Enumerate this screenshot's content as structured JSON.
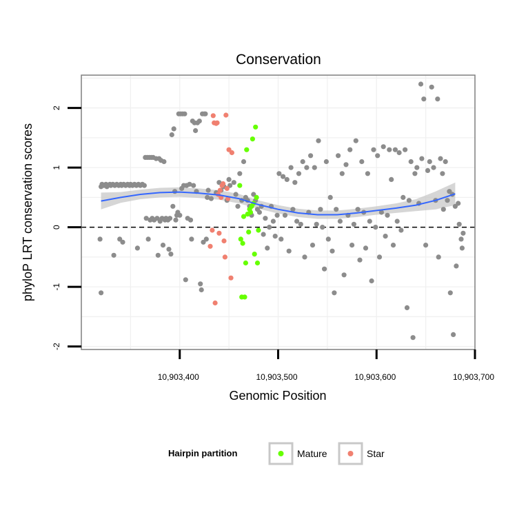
{
  "chart_data": {
    "type": "scatter",
    "title": "Conservation",
    "xlabel": "Genomic Position",
    "ylabel": "phyloP LRT conservation scores",
    "xlim": [
      10903300,
      10903700
    ],
    "ylim": [
      -2.05,
      2.55
    ],
    "x_ticks": [
      10903400,
      10903500,
      10903600,
      10903700
    ],
    "x_tick_labels": [
      "10,903,400",
      "10,903,500",
      "10,903,600",
      "10,903,700"
    ],
    "y_ticks": [
      -2,
      -1,
      0,
      1,
      2
    ],
    "y_tick_labels": [
      "-2",
      "-1",
      "0",
      "1",
      "2"
    ],
    "grid": true,
    "reference_line": {
      "y": 0,
      "style": "dashed"
    },
    "legend": {
      "title": "Hairpin partition",
      "position": "bottom",
      "entries": [
        {
          "label": "Mature",
          "color": "#66ff00"
        },
        {
          "label": "Star",
          "color": "#f08070"
        }
      ]
    },
    "colors": {
      "other": "#8c8c8c",
      "mature": "#66ff00",
      "star": "#f08070",
      "smooth": "#3366ff",
      "band": "#c8c8c8"
    },
    "series": [
      {
        "group": "other",
        "points": [
          [
            10903319,
            -0.2
          ],
          [
            10903320,
            -1.1
          ],
          [
            10903320,
            0.68
          ],
          [
            10903321,
            0.72
          ],
          [
            10903323,
            0.7
          ],
          [
            10903325,
            0.72
          ],
          [
            10903326,
            0.68
          ],
          [
            10903327,
            0.7
          ],
          [
            10903329,
            0.72
          ],
          [
            10903330,
            0.7
          ],
          [
            10903332,
            0.72
          ],
          [
            10903333,
            -0.47
          ],
          [
            10903334,
            0.7
          ],
          [
            10903336,
            0.72
          ],
          [
            10903338,
            0.7
          ],
          [
            10903339,
            -0.2
          ],
          [
            10903340,
            0.72
          ],
          [
            10903341,
            0.7
          ],
          [
            10903342,
            -0.25
          ],
          [
            10903343,
            0.72
          ],
          [
            10903345,
            0.7
          ],
          [
            10903347,
            0.72
          ],
          [
            10903349,
            0.7
          ],
          [
            10903350,
            0.72
          ],
          [
            10903352,
            0.7
          ],
          [
            10903354,
            0.72
          ],
          [
            10903356,
            0.7
          ],
          [
            10903357,
            -0.35
          ],
          [
            10903358,
            0.72
          ],
          [
            10903360,
            0.7
          ],
          [
            10903362,
            0.72
          ],
          [
            10903364,
            0.7
          ],
          [
            10903365,
            1.17
          ],
          [
            10903366,
            0.15
          ],
          [
            10903367,
            1.17
          ],
          [
            10903368,
            -0.2
          ],
          [
            10903369,
            1.17
          ],
          [
            10903370,
            0.12
          ],
          [
            10903371,
            1.17
          ],
          [
            10903372,
            0.15
          ],
          [
            10903373,
            1.17
          ],
          [
            10903374,
            0.12
          ],
          [
            10903376,
            1.15
          ],
          [
            10903377,
            0.15
          ],
          [
            10903378,
            -0.47
          ],
          [
            10903379,
            1.15
          ],
          [
            10903380,
            0.1
          ],
          [
            10903381,
            1.12
          ],
          [
            10903382,
            0.15
          ],
          [
            10903383,
            -0.3
          ],
          [
            10903384,
            1.1
          ],
          [
            10903385,
            0.12
          ],
          [
            10903386,
            0.15
          ],
          [
            10903388,
            0.12
          ],
          [
            10903389,
            -0.37
          ],
          [
            10903390,
            0.15
          ],
          [
            10903391,
            -0.45
          ],
          [
            10903392,
            1.55
          ],
          [
            10903393,
            0.35
          ],
          [
            10903394,
            1.65
          ],
          [
            10903395,
            0.6
          ],
          [
            10903396,
            0.12
          ],
          [
            10903397,
            0.2
          ],
          [
            10903398,
            0.25
          ],
          [
            10903399,
            1.9
          ],
          [
            10903400,
            0.2
          ],
          [
            10903401,
            1.9
          ],
          [
            10903402,
            0.65
          ],
          [
            10903403,
            1.9
          ],
          [
            10903404,
            0.7
          ],
          [
            10903405,
            1.9
          ],
          [
            10903406,
            -0.88
          ],
          [
            10903407,
            0.7
          ],
          [
            10903408,
            0.15
          ],
          [
            10903410,
            0.72
          ],
          [
            10903411,
            0.12
          ],
          [
            10903412,
            -0.2
          ],
          [
            10903413,
            1.78
          ],
          [
            10903414,
            0.7
          ],
          [
            10903415,
            1.75
          ],
          [
            10903416,
            1.62
          ],
          [
            10903417,
            0.6
          ],
          [
            10903418,
            1.75
          ],
          [
            10903420,
            1.78
          ],
          [
            10903421,
            -0.95
          ],
          [
            10903422,
            -1.05
          ],
          [
            10903423,
            1.9
          ],
          [
            10903424,
            -0.25
          ],
          [
            10903425,
            1.9
          ],
          [
            10903426,
            1.9
          ],
          [
            10903427,
            -0.2
          ],
          [
            10903428,
            0.5
          ],
          [
            10903429,
            0.62
          ],
          [
            10903432,
            0.48
          ],
          [
            10903437,
            0.58
          ],
          [
            10903440,
            0.75
          ],
          [
            10903442,
            0.62
          ],
          [
            10903445,
            0.68
          ],
          [
            10903448,
            0.45
          ],
          [
            10903450,
            0.8
          ],
          [
            10903451,
            0.7
          ],
          [
            10903455,
            0.75
          ],
          [
            10903457,
            0.55
          ],
          [
            10903459,
            0.35
          ],
          [
            10903461,
            0.9
          ],
          [
            10903463,
            0.45
          ],
          [
            10903465,
            1.1
          ],
          [
            10903467,
            0.5
          ],
          [
            10903469,
            0.45
          ],
          [
            10903471,
            0.35
          ],
          [
            10903473,
            0.2
          ],
          [
            10903475,
            0.55
          ],
          [
            10903477,
            0.45
          ],
          [
            10903479,
            0.3
          ],
          [
            10903481,
            0.25
          ],
          [
            10903483,
            0.35
          ],
          [
            10903485,
            -0.12
          ],
          [
            10903487,
            0.15
          ],
          [
            10903489,
            -0.35
          ],
          [
            10903491,
            0.0
          ],
          [
            10903493,
            0.35
          ],
          [
            10903495,
            0.1
          ],
          [
            10903497,
            -0.15
          ],
          [
            10903499,
            0.2
          ],
          [
            10903501,
            0.9
          ],
          [
            10903503,
            -0.2
          ],
          [
            10903505,
            0.85
          ],
          [
            10903507,
            0.2
          ],
          [
            10903509,
            0.8
          ],
          [
            10903511,
            -0.4
          ],
          [
            10903513,
            1.0
          ],
          [
            10903515,
            0.3
          ],
          [
            10903517,
            0.75
          ],
          [
            10903519,
            0.1
          ],
          [
            10903521,
            0.9
          ],
          [
            10903523,
            0.05
          ],
          [
            10903525,
            1.1
          ],
          [
            10903527,
            -0.5
          ],
          [
            10903529,
            1.0
          ],
          [
            10903531,
            0.25
          ],
          [
            10903533,
            1.2
          ],
          [
            10903535,
            -0.3
          ],
          [
            10903537,
            1.0
          ],
          [
            10903539,
            0.05
          ],
          [
            10903541,
            1.45
          ],
          [
            10903543,
            0.3
          ],
          [
            10903545,
            0.0
          ],
          [
            10903547,
            -0.7
          ],
          [
            10903549,
            1.1
          ],
          [
            10903551,
            -0.2
          ],
          [
            10903553,
            0.5
          ],
          [
            10903555,
            -0.4
          ],
          [
            10903557,
            -1.1
          ],
          [
            10903559,
            0.3
          ],
          [
            10903561,
            1.2
          ],
          [
            10903563,
            0.1
          ],
          [
            10903565,
            0.9
          ],
          [
            10903567,
            -0.8
          ],
          [
            10903569,
            1.05
          ],
          [
            10903571,
            0.2
          ],
          [
            10903573,
            1.3
          ],
          [
            10903575,
            -0.3
          ],
          [
            10903577,
            0.05
          ],
          [
            10903579,
            1.45
          ],
          [
            10903581,
            0.3
          ],
          [
            10903583,
            -0.55
          ],
          [
            10903585,
            1.1
          ],
          [
            10903587,
            0.25
          ],
          [
            10903589,
            -0.35
          ],
          [
            10903591,
            0.9
          ],
          [
            10903593,
            0.1
          ],
          [
            10903595,
            -0.9
          ],
          [
            10903597,
            1.3
          ],
          [
            10903599,
            0.0
          ],
          [
            10903601,
            1.2
          ],
          [
            10903603,
            -0.5
          ],
          [
            10903605,
            0.25
          ],
          [
            10903607,
            1.35
          ],
          [
            10903609,
            -0.15
          ],
          [
            10903611,
            0.2
          ],
          [
            10903613,
            1.3
          ],
          [
            10903615,
            0.8
          ],
          [
            10903617,
            -0.3
          ],
          [
            10903619,
            1.3
          ],
          [
            10903621,
            0.1
          ],
          [
            10903623,
            1.25
          ],
          [
            10903625,
            -0.05
          ],
          [
            10903627,
            0.5
          ],
          [
            10903629,
            1.3
          ],
          [
            10903631,
            -1.35
          ],
          [
            10903633,
            0.45
          ],
          [
            10903635,
            1.1
          ],
          [
            10903637,
            -1.85
          ],
          [
            10903639,
            0.9
          ],
          [
            10903641,
            1.0
          ],
          [
            10903643,
            0.4
          ],
          [
            10903645,
            2.4
          ],
          [
            10903646,
            1.15
          ],
          [
            10903648,
            2.15
          ],
          [
            10903650,
            -0.3
          ],
          [
            10903652,
            0.95
          ],
          [
            10903654,
            1.1
          ],
          [
            10903656,
            2.35
          ],
          [
            10903658,
            1.0
          ],
          [
            10903660,
            0.45
          ],
          [
            10903662,
            2.15
          ],
          [
            10903663,
            -0.5
          ],
          [
            10903665,
            1.15
          ],
          [
            10903667,
            0.9
          ],
          [
            10903668,
            0.3
          ],
          [
            10903670,
            1.1
          ],
          [
            10903672,
            0.45
          ],
          [
            10903674,
            0.6
          ],
          [
            10903675,
            -1.1
          ],
          [
            10903677,
            0.55
          ],
          [
            10903678,
            -1.8
          ],
          [
            10903680,
            0.35
          ],
          [
            10903681,
            -0.65
          ],
          [
            10903683,
            0.4
          ],
          [
            10903684,
            0.05
          ],
          [
            10903686,
            -0.2
          ],
          [
            10903687,
            -0.35
          ],
          [
            10903688,
            -0.1
          ]
        ]
      },
      {
        "group": "mature",
        "points": [
          [
            10903461,
            0.7
          ],
          [
            10903462,
            -0.2
          ],
          [
            10903463,
            -1.17
          ],
          [
            10903464,
            -0.27
          ],
          [
            10903465,
            0.18
          ],
          [
            10903466,
            -1.17
          ],
          [
            10903467,
            -0.6
          ],
          [
            10903468,
            1.3
          ],
          [
            10903469,
            0.22
          ],
          [
            10903470,
            -0.08
          ],
          [
            10903471,
            0.3
          ],
          [
            10903472,
            0.25
          ],
          [
            10903473,
            0.35
          ],
          [
            10903474,
            1.48
          ],
          [
            10903475,
            0.4
          ],
          [
            10903476,
            -0.45
          ],
          [
            10903477,
            1.68
          ],
          [
            10903478,
            0.5
          ],
          [
            10903479,
            -0.6
          ],
          [
            10903480,
            -0.05
          ]
        ]
      },
      {
        "group": "star",
        "points": [
          [
            10903431,
            -0.32
          ],
          [
            10903433,
            -0.05
          ],
          [
            10903434,
            1.87
          ],
          [
            10903435,
            1.75
          ],
          [
            10903436,
            -1.27
          ],
          [
            10903437,
            1.74
          ],
          [
            10903438,
            1.75
          ],
          [
            10903439,
            0.55
          ],
          [
            10903440,
            -0.1
          ],
          [
            10903441,
            0.62
          ],
          [
            10903442,
            0.5
          ],
          [
            10903443,
            0.7
          ],
          [
            10903444,
            0.73
          ],
          [
            10903445,
            -0.23
          ],
          [
            10903446,
            -0.5
          ],
          [
            10903447,
            1.88
          ],
          [
            10903448,
            0.65
          ],
          [
            10903449,
            0.48
          ],
          [
            10903450,
            1.3
          ],
          [
            10903452,
            -0.85
          ],
          [
            10903453,
            1.25
          ]
        ]
      }
    ],
    "smooth": {
      "x": [
        10903320,
        10903340,
        10903360,
        10903380,
        10903400,
        10903420,
        10903440,
        10903460,
        10903480,
        10903500,
        10903520,
        10903540,
        10903560,
        10903580,
        10903600,
        10903620,
        10903640,
        10903660,
        10903680
      ],
      "y": [
        0.44,
        0.5,
        0.55,
        0.58,
        0.59,
        0.57,
        0.54,
        0.48,
        0.38,
        0.3,
        0.24,
        0.21,
        0.21,
        0.24,
        0.28,
        0.32,
        0.37,
        0.45,
        0.56
      ],
      "lower": [
        0.3,
        0.41,
        0.47,
        0.5,
        0.51,
        0.49,
        0.46,
        0.4,
        0.31,
        0.23,
        0.17,
        0.14,
        0.14,
        0.17,
        0.21,
        0.24,
        0.27,
        0.3,
        0.37
      ],
      "upper": [
        0.58,
        0.59,
        0.63,
        0.66,
        0.67,
        0.65,
        0.62,
        0.56,
        0.45,
        0.37,
        0.31,
        0.28,
        0.28,
        0.31,
        0.35,
        0.4,
        0.47,
        0.6,
        0.75
      ]
    }
  }
}
